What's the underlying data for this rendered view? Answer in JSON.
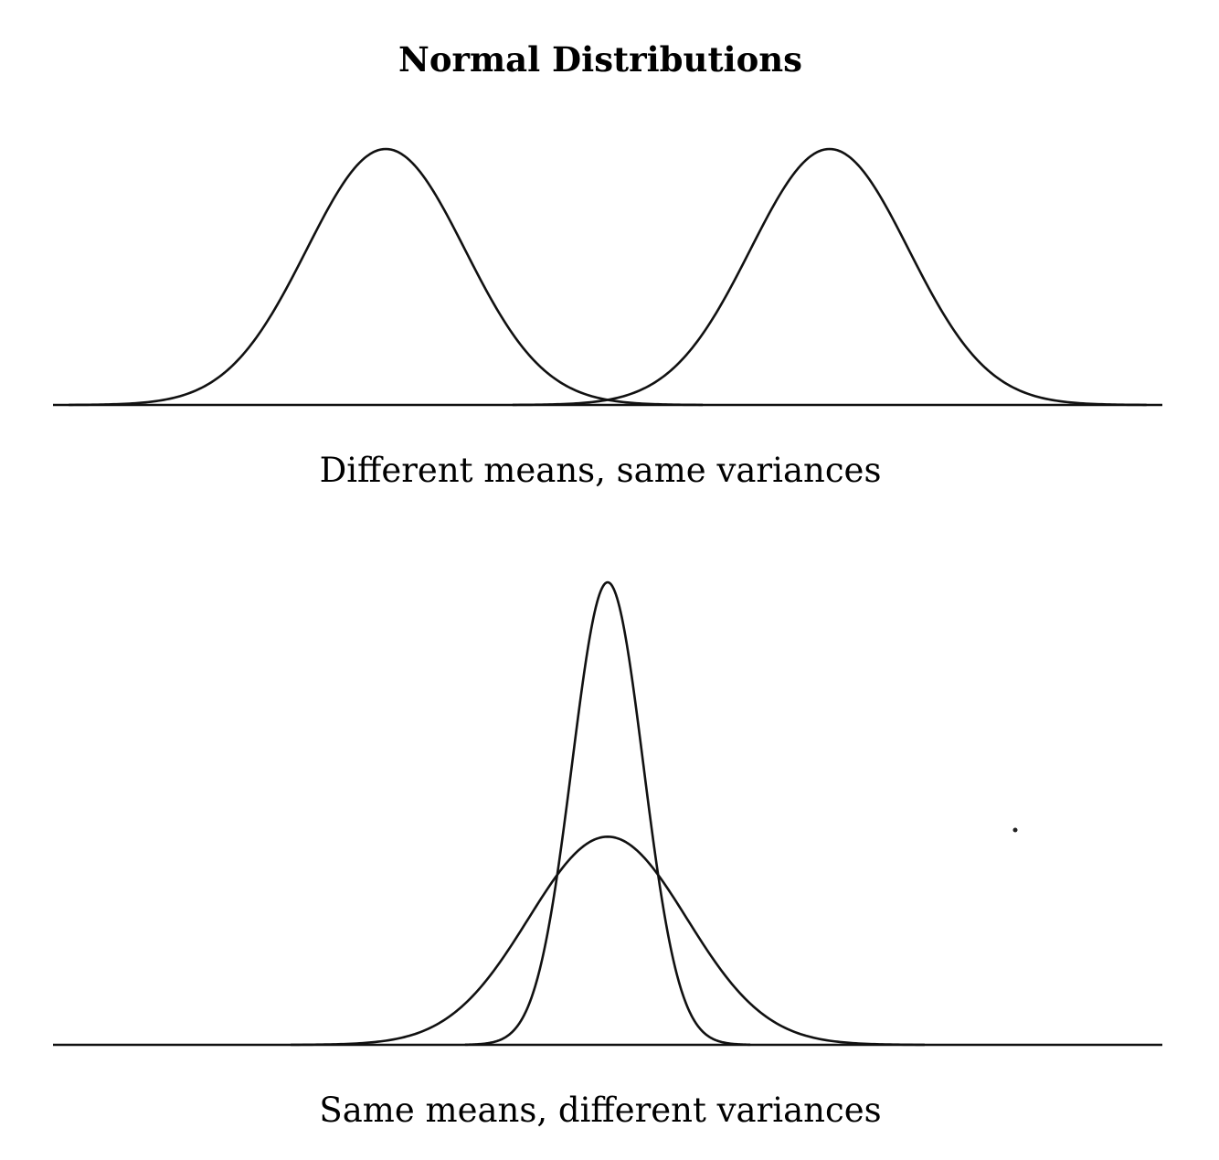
{
  "title": "Normal Distributions",
  "chart_data": [
    {
      "type": "line",
      "caption": "Different means, same variances",
      "xlim": [
        -7,
        7
      ],
      "ylim": [
        0,
        0.4
      ],
      "grid": false,
      "series": [
        {
          "mean": -2.8,
          "sd": 1.0
        },
        {
          "mean": 2.8,
          "sd": 1.0
        }
      ]
    },
    {
      "type": "line",
      "caption": "Same means, different variances",
      "xlim": [
        -7,
        7
      ],
      "ylim": [
        0,
        0.4
      ],
      "grid": false,
      "series": [
        {
          "mean": 0,
          "sd": 1.0
        },
        {
          "mean": 0,
          "sd": 0.45
        }
      ]
    }
  ]
}
